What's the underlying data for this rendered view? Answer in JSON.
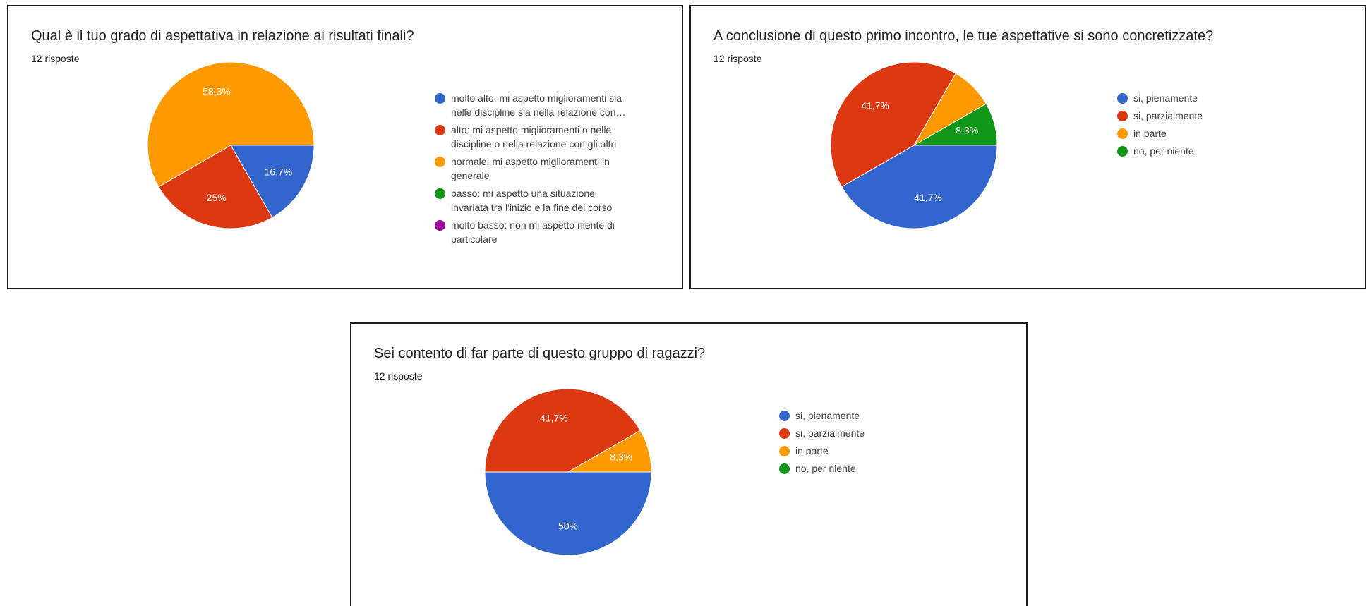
{
  "charts": [
    {
      "title": "Qual è il tuo grado di aspettativa in relazione ai risultati finali?",
      "subtitle": "12 risposte",
      "legend": [
        {
          "line1": "molto alto: mi aspetto miglioramenti sia",
          "line2": "nelle discipline sia nella relazione con…",
          "color": "#3366cc"
        },
        {
          "line1": "alto: mi aspetto miglioramenti o nelle",
          "line2": "discipline o nella relazione con gli altri",
          "color": "#dc3912"
        },
        {
          "line1": "normale: mi aspetto miglioramenti in",
          "line2": "generale",
          "color": "#ff9900"
        },
        {
          "line1": "basso: mi aspetto una situazione",
          "line2": "invariata tra l'inizio e la fine del corso",
          "color": "#109618"
        },
        {
          "line1": "molto basso: non mi aspetto niente di",
          "line2": "particolare",
          "color": "#990099"
        }
      ]
    },
    {
      "title": "A conclusione di questo primo incontro, le tue aspettative si sono concretizzate?",
      "subtitle": "12 risposte",
      "legend": [
        {
          "line1": "si, pienamente",
          "color": "#3366cc"
        },
        {
          "line1": "si, parzialmente",
          "color": "#dc3912"
        },
        {
          "line1": "in parte",
          "color": "#ff9900"
        },
        {
          "line1": "no, per niente",
          "color": "#109618"
        }
      ]
    },
    {
      "title": "Sei contento di far parte di questo gruppo di ragazzi?",
      "subtitle": "12 risposte",
      "legend": [
        {
          "line1": "si, pienamente",
          "color": "#3366cc"
        },
        {
          "line1": "si, parzialmente",
          "color": "#dc3912"
        },
        {
          "line1": "in parte",
          "color": "#ff9900"
        },
        {
          "line1": "no, per niente",
          "color": "#109618"
        }
      ]
    }
  ],
  "chart_data": [
    {
      "type": "pie",
      "title": "Qual è il tuo grado di aspettativa in relazione ai risultati finali?",
      "subtitle": "12 risposte",
      "categories": [
        "molto alto: mi aspetto miglioramenti sia nelle discipline sia nella relazione con…",
        "alto: mi aspetto miglioramenti o nelle discipline o nella relazione con gli altri",
        "normale: mi aspetto miglioramenti in generale",
        "basso: mi aspetto una situazione invariata tra l'inizio e la fine del corso",
        "molto basso: non mi aspetto niente di particolare"
      ],
      "values": [
        16.7,
        25,
        58.3,
        0,
        0
      ],
      "labels": [
        "16,7%",
        "25%",
        "58,3%",
        "",
        ""
      ],
      "colors": [
        "#3366cc",
        "#dc3912",
        "#ff9900",
        "#109618",
        "#990099"
      ],
      "legend_position": "right"
    },
    {
      "type": "pie",
      "title": "A conclusione di questo primo incontro, le tue aspettative si sono concretizzate?",
      "subtitle": "12 risposte",
      "categories": [
        "si, pienamente",
        "si, parzialmente",
        "in parte",
        "no, per niente"
      ],
      "values": [
        41.7,
        41.7,
        8.3,
        8.3
      ],
      "labels": [
        "41,7%",
        "41,7%",
        "",
        "8,3%"
      ],
      "colors": [
        "#3366cc",
        "#dc3912",
        "#ff9900",
        "#109618"
      ],
      "legend_position": "right"
    },
    {
      "type": "pie",
      "title": "Sei contento di far parte di questo gruppo di ragazzi?",
      "subtitle": "12 risposte",
      "categories": [
        "si, pienamente",
        "si, parzialmente",
        "in parte",
        "no, per niente"
      ],
      "values": [
        50,
        41.7,
        8.3,
        0
      ],
      "labels": [
        "50%",
        "41,7%",
        "8,3%",
        ""
      ],
      "colors": [
        "#3366cc",
        "#dc3912",
        "#ff9900",
        "#109618"
      ],
      "legend_position": "right"
    }
  ]
}
